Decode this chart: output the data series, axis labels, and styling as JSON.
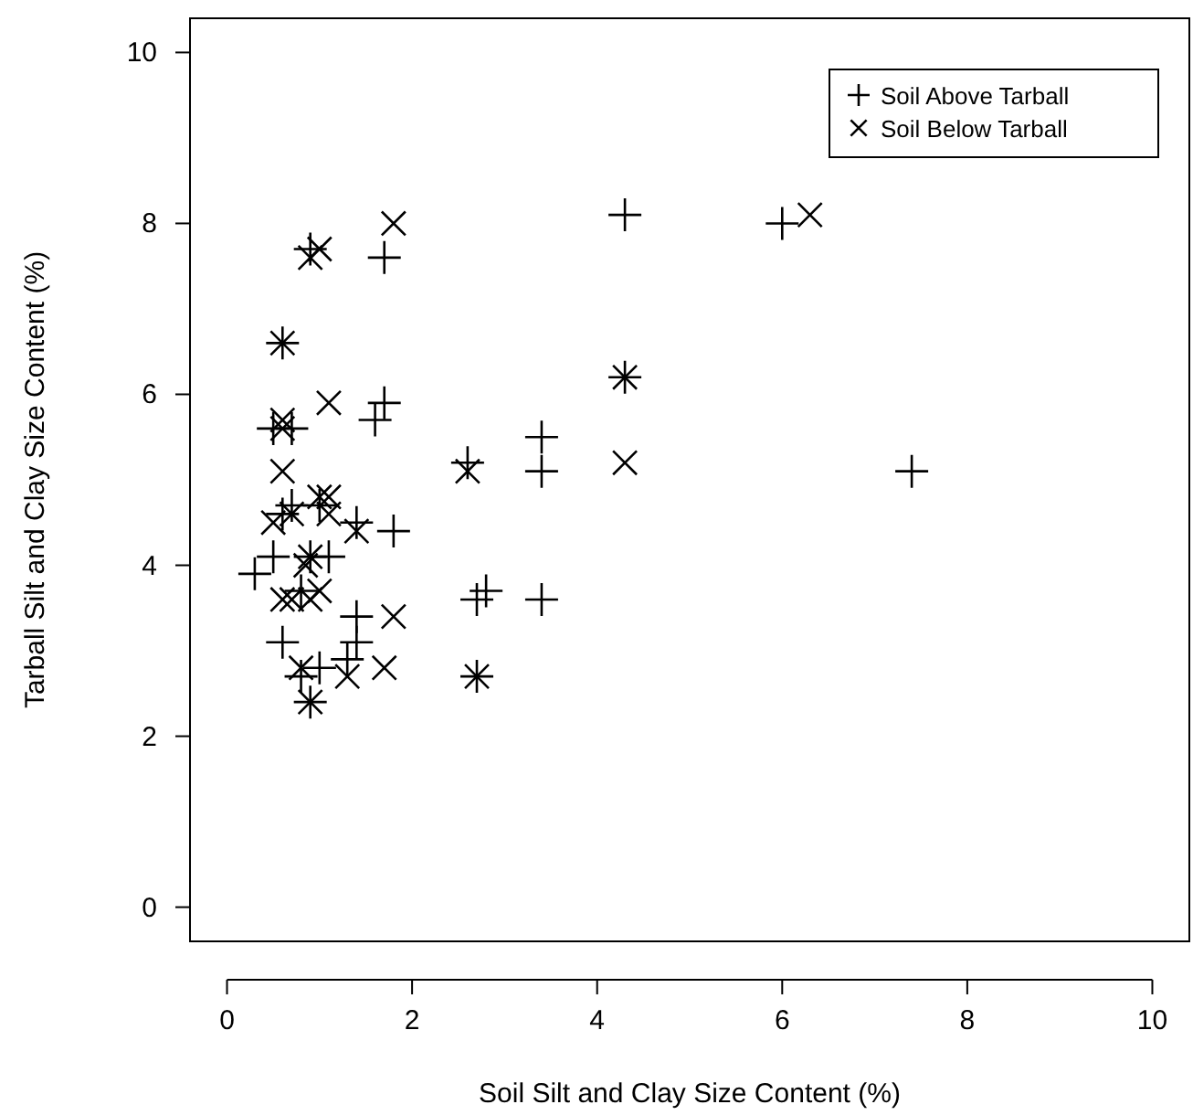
{
  "chart_data": {
    "type": "scatter",
    "xlabel": "Soil Silt and Clay Size Content (%)",
    "ylabel": "Tarball Silt and Clay Size Content (%)",
    "xlim": [
      -0.4,
      10.4
    ],
    "ylim": [
      -0.4,
      10.4
    ],
    "xticks": [
      0,
      2,
      4,
      6,
      8,
      10
    ],
    "yticks": [
      0,
      2,
      4,
      6,
      8,
      10
    ],
    "grid": false,
    "legend": "top right",
    "series": [
      {
        "name": "Soil Above Tarball",
        "color": "#000000",
        "marker": "plus",
        "x": [
          0.3,
          0.5,
          0.5,
          0.6,
          0.6,
          0.6,
          0.7,
          0.7,
          0.8,
          0.8,
          0.9,
          0.9,
          0.9,
          1.0,
          1.0,
          1.1,
          1.3,
          1.4,
          1.4,
          1.4,
          1.6,
          1.7,
          1.7,
          1.8,
          2.6,
          2.7,
          2.8,
          2.7,
          3.4,
          3.4,
          3.4,
          4.3,
          4.3,
          6.0,
          7.4
        ],
        "values": [
          3.9,
          4.1,
          5.6,
          3.1,
          4.6,
          6.6,
          4.7,
          5.6,
          2.7,
          3.7,
          7.7,
          2.4,
          4.1,
          2.8,
          4.7,
          4.1,
          2.9,
          3.1,
          3.4,
          4.5,
          5.7,
          5.9,
          7.6,
          4.4,
          5.2,
          3.6,
          3.7,
          2.7,
          5.5,
          5.1,
          3.6,
          8.1,
          6.2,
          8.0,
          5.1
        ]
      },
      {
        "name": "Soil Below Tarball",
        "color": "#000000",
        "marker": "cross",
        "x": [
          0.5,
          0.6,
          0.6,
          0.6,
          0.6,
          0.6,
          0.7,
          0.7,
          0.8,
          0.85,
          0.9,
          0.9,
          0.9,
          0.9,
          1.0,
          1.0,
          1.0,
          1.1,
          1.1,
          1.1,
          1.3,
          1.4,
          1.7,
          1.8,
          1.8,
          2.6,
          2.7,
          4.3,
          4.3,
          6.3
        ],
        "values": [
          4.5,
          5.6,
          5.7,
          5.1,
          3.6,
          6.6,
          4.6,
          3.6,
          2.8,
          4.0,
          7.6,
          2.4,
          4.1,
          3.6,
          7.7,
          3.7,
          4.8,
          4.8,
          5.9,
          4.6,
          2.7,
          4.4,
          2.8,
          3.4,
          8.0,
          5.1,
          2.7,
          6.2,
          5.2,
          8.1
        ]
      }
    ]
  }
}
